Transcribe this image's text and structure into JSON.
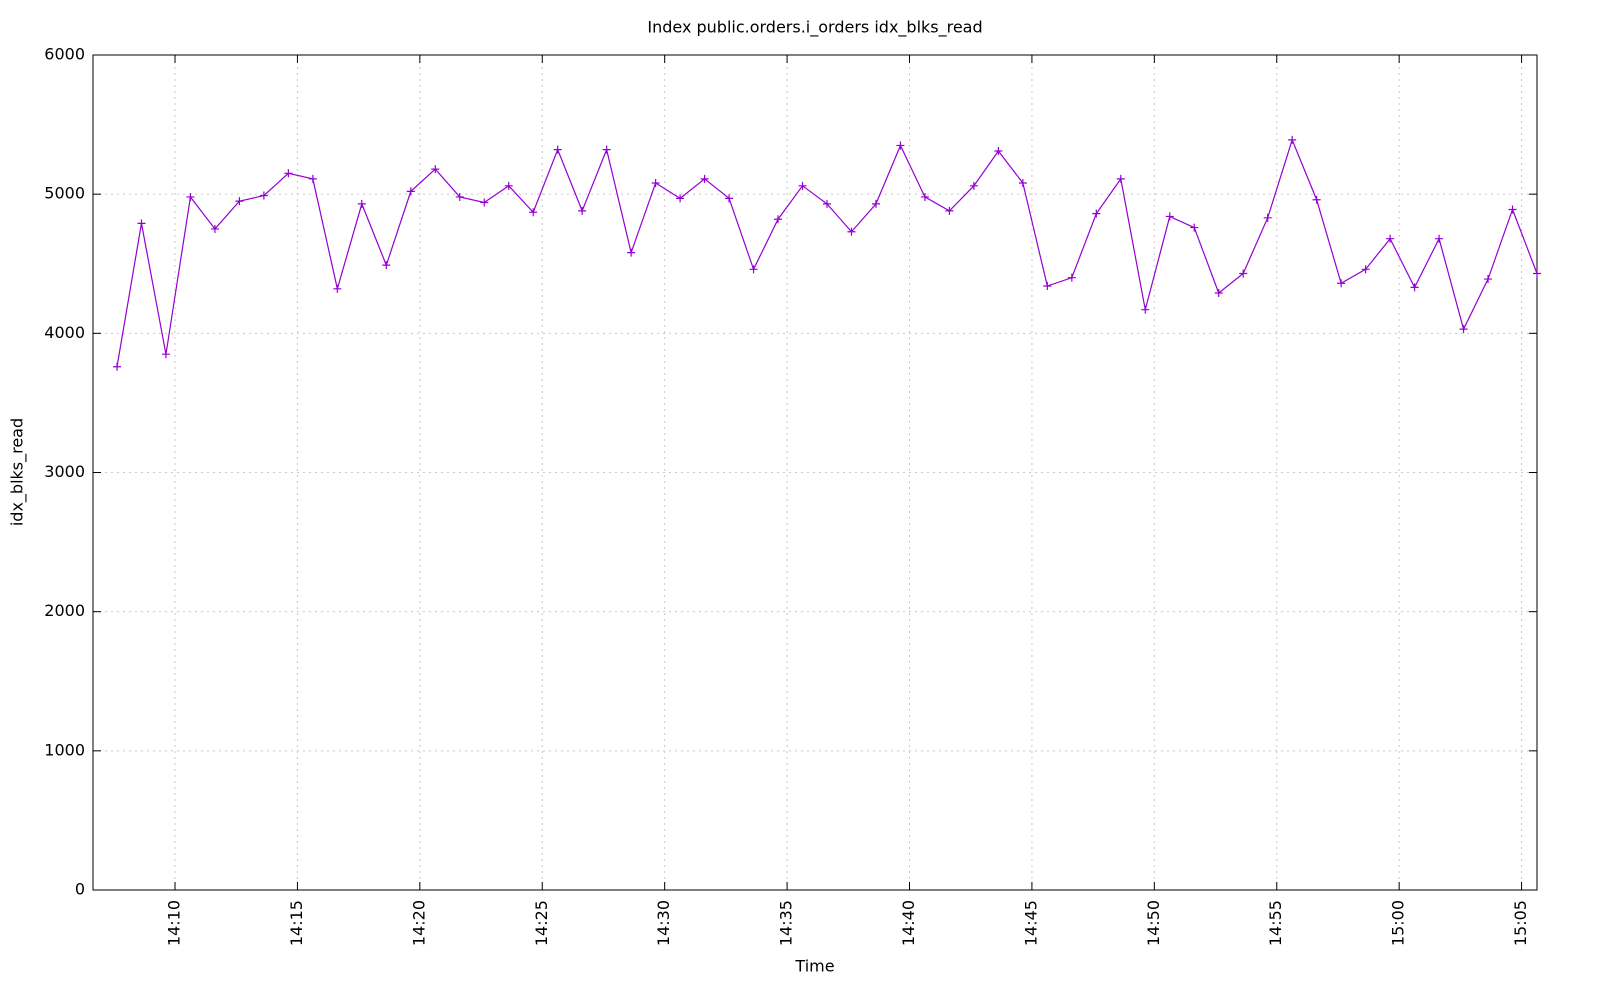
{
  "chart_data": {
    "type": "line",
    "title": "Index public.orders.i_orders idx_blks_read",
    "xlabel": "Time",
    "ylabel": "idx_blks_read",
    "x": [
      847.63,
      848.63,
      849.63,
      850.63,
      851.63,
      852.63,
      853.63,
      854.63,
      855.63,
      856.63,
      857.63,
      858.63,
      859.63,
      860.63,
      861.63,
      862.63,
      863.63,
      864.63,
      865.63,
      866.63,
      867.63,
      868.63,
      869.63,
      870.63,
      871.63,
      872.63,
      873.63,
      874.63,
      875.63,
      876.63,
      877.63,
      878.63,
      879.63,
      880.63,
      881.63,
      882.63,
      883.63,
      884.63,
      885.63,
      886.63,
      887.63,
      888.63,
      889.63,
      890.63,
      891.63,
      892.63,
      893.63,
      894.63,
      895.63,
      896.63,
      897.63,
      898.63,
      899.63,
      900.63,
      901.63,
      902.63,
      903.63,
      904.63,
      905.63
    ],
    "values": [
      3760,
      4790,
      3850,
      4980,
      4750,
      4950,
      4990,
      5150,
      5110,
      4320,
      4930,
      4490,
      5020,
      5180,
      4980,
      4940,
      5060,
      4870,
      5320,
      4880,
      5320,
      4580,
      5080,
      4970,
      5110,
      4970,
      4460,
      4820,
      5060,
      4930,
      4730,
      4930,
      5350,
      4980,
      4880,
      5060,
      5310,
      5080,
      4340,
      4400,
      4860,
      5110,
      4170,
      4840,
      4760,
      4290,
      4430,
      4830,
      5390,
      4960,
      4360,
      4460,
      4680,
      4330,
      4680,
      4030,
      4390,
      4890,
      4430
    ],
    "color": "#9400d3",
    "xlim": [
      846.65,
      905.63
    ],
    "xticks": [
      {
        "value": 850,
        "label": "14:10"
      },
      {
        "value": 855,
        "label": "14:15"
      },
      {
        "value": 860,
        "label": "14:20"
      },
      {
        "value": 865,
        "label": "14:25"
      },
      {
        "value": 870,
        "label": "14:30"
      },
      {
        "value": 875,
        "label": "14:35"
      },
      {
        "value": 880,
        "label": "14:40"
      },
      {
        "value": 885,
        "label": "14:45"
      },
      {
        "value": 890,
        "label": "14:50"
      },
      {
        "value": 895,
        "label": "14:55"
      },
      {
        "value": 900,
        "label": "15:00"
      },
      {
        "value": 905,
        "label": "15:05"
      }
    ],
    "ylim": [
      0,
      6000
    ],
    "yticks": [
      0,
      1000,
      2000,
      3000,
      4000,
      5000,
      6000
    ],
    "grid": true
  }
}
